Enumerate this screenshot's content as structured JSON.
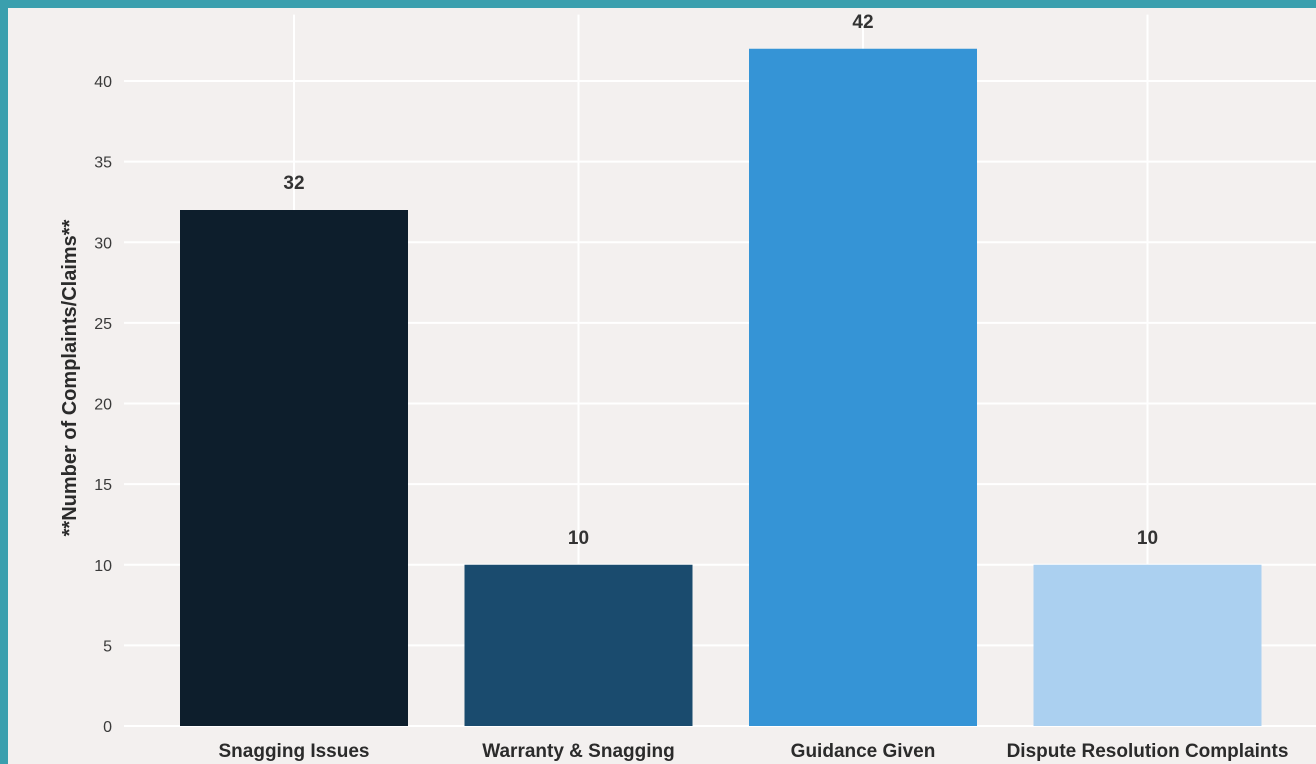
{
  "chart_data": {
    "type": "bar",
    "categories": [
      "Snagging Issues",
      "Warranty & Snagging",
      "Guidance Given",
      "Dispute Resolution Complaints"
    ],
    "values": [
      32,
      10,
      42,
      10
    ],
    "data_labels": [
      "32",
      "10",
      "42",
      "10"
    ],
    "colors": [
      "#0d1e2c",
      "#1a4b6e",
      "#3594d6",
      "#abd0f0"
    ],
    "ylabel": "**Number of Complaints/Claims**",
    "xlabel": "",
    "title": "",
    "ylim": [
      0,
      43.5
    ],
    "yticks": [
      0,
      5,
      10,
      15,
      20,
      25,
      30,
      35,
      40
    ],
    "grid": true,
    "legend": "none"
  },
  "colors": {
    "page_border": "#3a9fae",
    "plot_background": "#f3f0ef",
    "grid": "#ffffff"
  }
}
